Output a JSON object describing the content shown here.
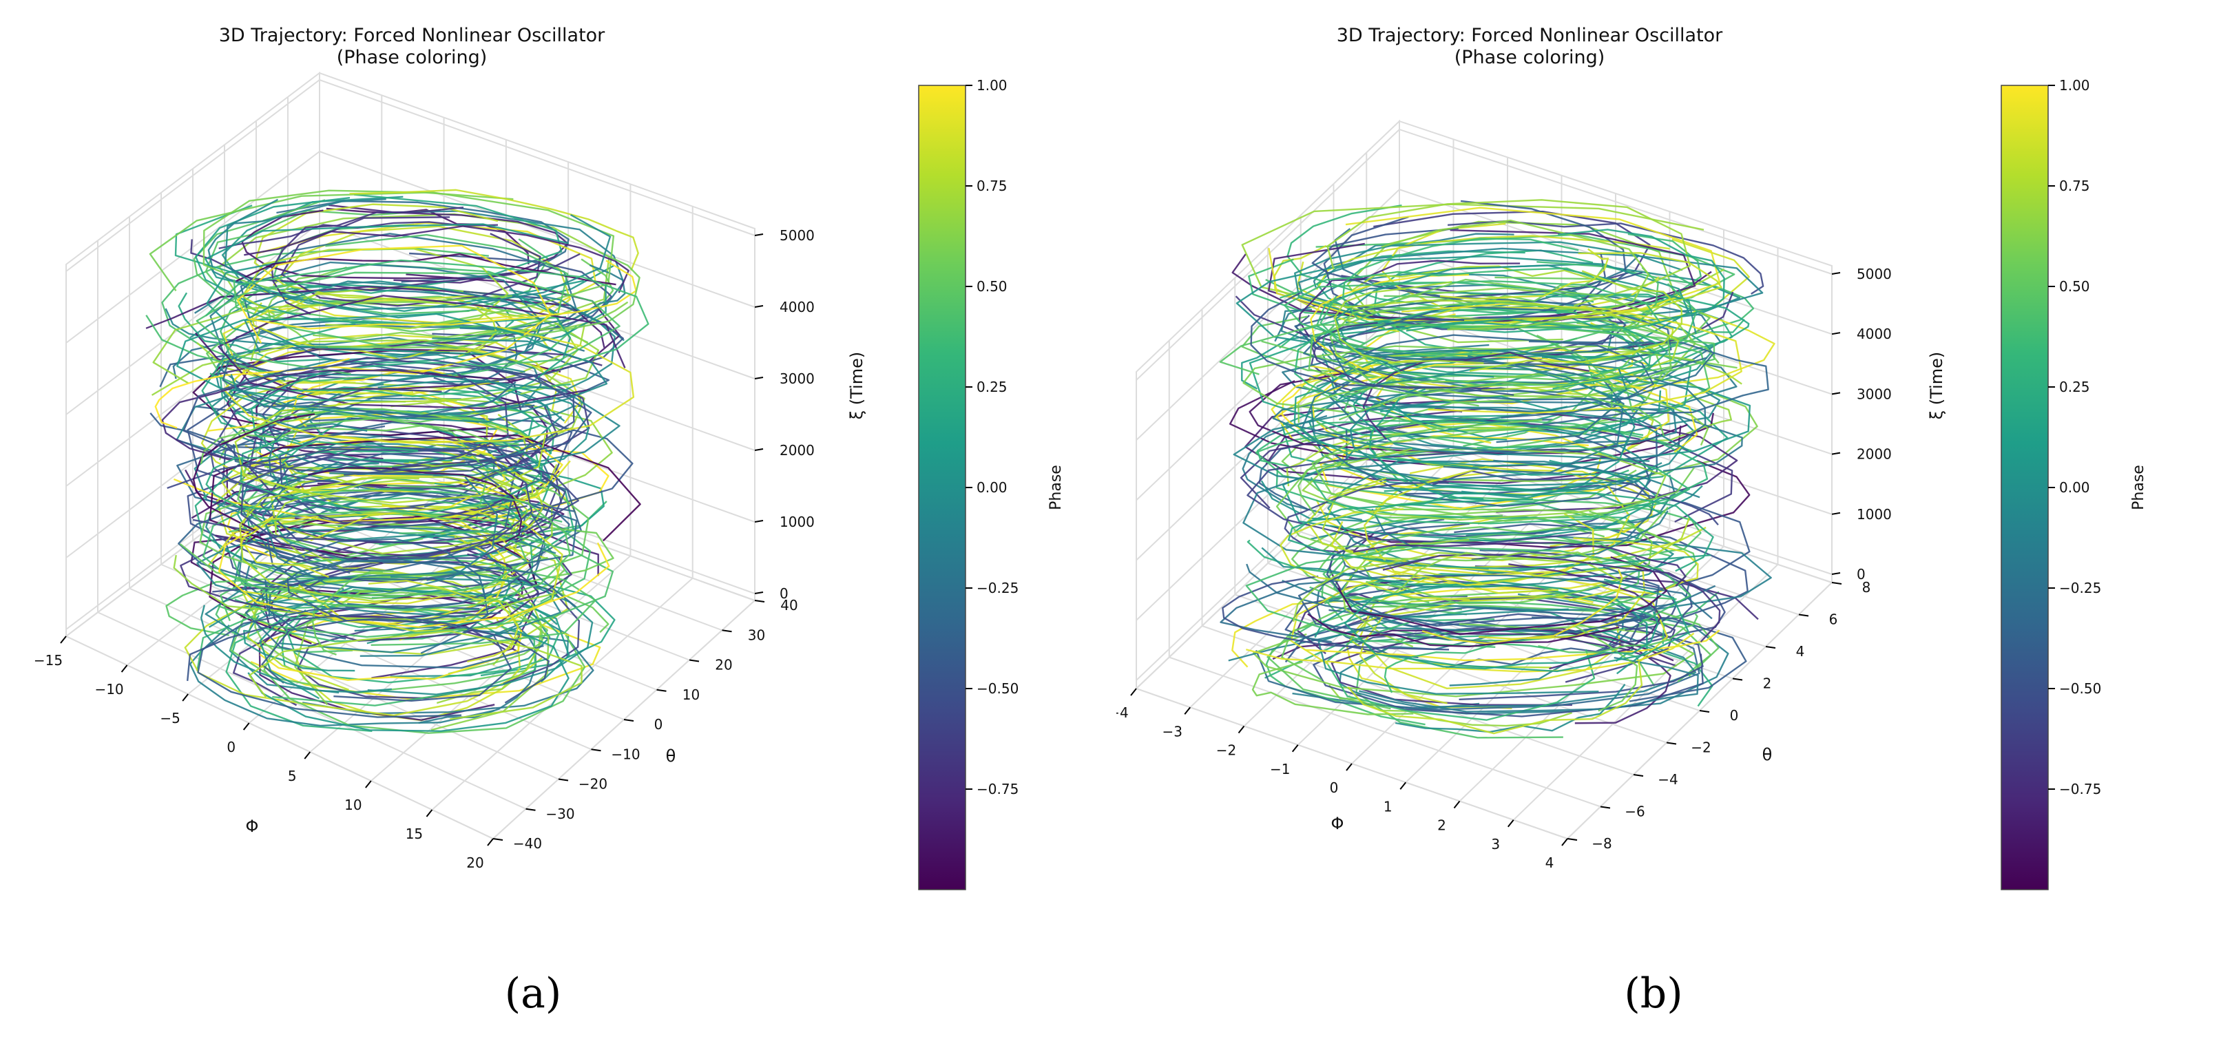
{
  "chart_data": [
    {
      "type": "line3d",
      "panel_label": "(a)",
      "title": "3D Trajectory: Forced Nonlinear Oscillator\n(Phase coloring)",
      "xlabel": "Φ",
      "ylabel": "θ",
      "zlabel": "ξ (Time)",
      "xlim": [
        -15,
        20
      ],
      "ylim": [
        -40,
        45
      ],
      "zlim": [
        0,
        5000
      ],
      "x_ticks": [
        "−15",
        "−10",
        "−5",
        "0",
        "5",
        "10",
        "15",
        "20"
      ],
      "y_ticks": [
        "−40",
        "−30",
        "−20",
        "−10",
        "0",
        "10",
        "20",
        "30",
        "40"
      ],
      "z_ticks": [
        "0",
        "1000",
        "2000",
        "3000",
        "4000",
        "5000"
      ],
      "colorbar": {
        "label": "Phase",
        "colormap": "viridis",
        "range": [
          -1.0,
          1.0
        ],
        "ticks": [
          "1.00",
          "0.75",
          "0.50",
          "0.25",
          "0.00",
          "−0.25",
          "−0.50",
          "−0.75"
        ]
      }
    },
    {
      "type": "line3d",
      "panel_label": "(b)",
      "title": "3D Trajectory: Forced Nonlinear Oscillator\n(Phase coloring)",
      "xlabel": "Φ",
      "ylabel": "θ",
      "zlabel": "ξ (Time)",
      "xlim": [
        -4,
        4.5
      ],
      "ylim": [
        -8,
        8
      ],
      "zlim": [
        0,
        5000
      ],
      "x_ticks": [
        "−4",
        "−3",
        "−2",
        "−1",
        "0",
        "1",
        "2",
        "3",
        "4"
      ],
      "y_ticks": [
        "−8",
        "−6",
        "−4",
        "−2",
        "0",
        "2",
        "4",
        "6",
        "8"
      ],
      "z_ticks": [
        "0",
        "1000",
        "2000",
        "3000",
        "4000",
        "5000"
      ],
      "colorbar": {
        "label": "Phase",
        "colormap": "viridis",
        "range": [
          -1.0,
          1.0
        ],
        "ticks": [
          "1.00",
          "0.75",
          "0.50",
          "0.25",
          "0.00",
          "−0.25",
          "−0.50",
          "−0.75"
        ]
      }
    }
  ]
}
